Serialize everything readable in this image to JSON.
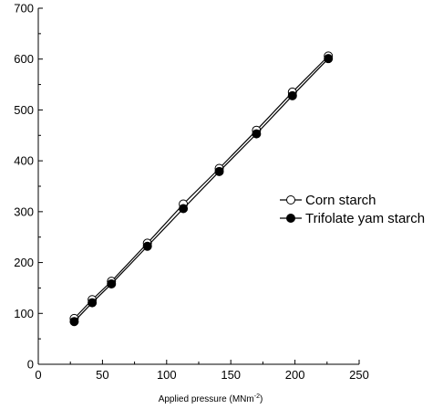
{
  "chart_data": {
    "type": "line",
    "title": "",
    "xlabel": "Applied pressure (MNm",
    "xlabel_superscript": "-2",
    "xlabel_suffix": ")",
    "ylabel": "",
    "xlim": [
      0,
      250
    ],
    "ylim": [
      0,
      700
    ],
    "xticks": [
      "0",
      "50",
      "100",
      "150",
      "200",
      "250"
    ],
    "yticks": [
      "0",
      "100",
      "200",
      "300",
      "400",
      "500",
      "600",
      "700"
    ],
    "grid": false,
    "legend_position": "right",
    "series": [
      {
        "name": "Corn starch",
        "marker": "open-circle",
        "x": [
          28,
          42,
          57,
          85,
          113,
          141,
          170,
          198,
          226
        ],
        "y": [
          90,
          127,
          163,
          238,
          315,
          385,
          460,
          535,
          606
        ]
      },
      {
        "name": "Trifolate yam starch",
        "marker": "filled-circle",
        "x": [
          28,
          42,
          57,
          85,
          113,
          141,
          170,
          198,
          226
        ],
        "y": [
          84,
          121,
          158,
          232,
          306,
          379,
          453,
          528,
          601
        ]
      }
    ]
  }
}
